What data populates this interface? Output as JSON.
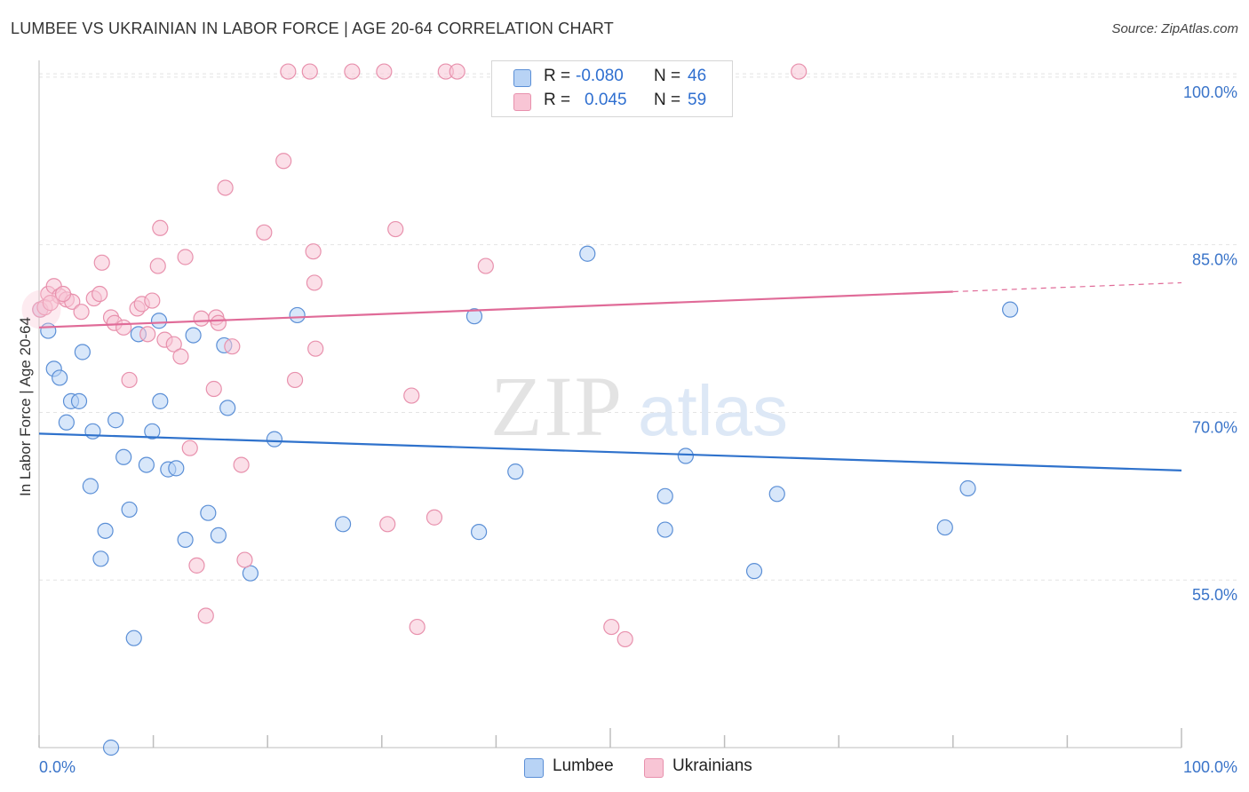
{
  "title": "LUMBEE VS UKRAINIAN IN LABOR FORCE | AGE 20-64 CORRELATION CHART",
  "source": "Source: ZipAtlas.com",
  "watermark": {
    "zip": "ZIP",
    "atlas": "atlas"
  },
  "legend": {
    "r_label": "R =",
    "n_label": "N =",
    "rows": [
      {
        "series": "Lumbee",
        "r": "-0.080",
        "n": "46"
      },
      {
        "series": "Ukrainians",
        "r": "0.045",
        "n": "59"
      }
    ]
  },
  "bottom_legend": [
    "Lumbee",
    "Ukrainians"
  ],
  "colors": {
    "lumbee_fill": "#b8d3f5",
    "lumbee_stroke": "#5b8fd6",
    "lumbee_line": "#2f72cc",
    "ukr_fill": "#f8c5d5",
    "ukr_stroke": "#e891ad",
    "ukr_line": "#e06b98",
    "value_text": "#2f6fd0",
    "grid": "#e4e4e4",
    "axis_tick_text": "#3a74c9"
  },
  "chart_data": {
    "type": "scatter",
    "title": "LUMBEE VS UKRAINIAN IN LABOR FORCE | AGE 20-64 CORRELATION CHART",
    "xlabel": "",
    "ylabel": "In Labor Force | Age 20-64",
    "xlim": [
      0,
      100
    ],
    "ylim": [
      40,
      101.5
    ],
    "x_tick_labels": [
      "0.0%",
      "100.0%"
    ],
    "y_ticks": [
      55,
      70,
      85,
      100
    ],
    "y_tick_labels": [
      "55.0%",
      "70.0%",
      "85.0%",
      "100.0%"
    ],
    "grid": true,
    "series": [
      {
        "name": "Lumbee",
        "r": -0.08,
        "n": 46,
        "trend": {
          "x": [
            0,
            100
          ],
          "y": [
            68.1,
            64.8
          ]
        },
        "points": [
          [
            0.1,
            79.2
          ],
          [
            0.8,
            77.3
          ],
          [
            1.3,
            73.9
          ],
          [
            1.8,
            73.1
          ],
          [
            2.4,
            69.1
          ],
          [
            2.8,
            71.0
          ],
          [
            3.5,
            71.0
          ],
          [
            3.8,
            75.4
          ],
          [
            4.5,
            63.4
          ],
          [
            4.7,
            68.3
          ],
          [
            5.8,
            59.4
          ],
          [
            5.4,
            56.9
          ],
          [
            6.7,
            69.3
          ],
          [
            7.4,
            66.0
          ],
          [
            7.9,
            61.3
          ],
          [
            8.3,
            49.8
          ],
          [
            8.7,
            77.0
          ],
          [
            9.4,
            65.3
          ],
          [
            9.9,
            68.3
          ],
          [
            10.6,
            71.0
          ],
          [
            10.5,
            78.2
          ],
          [
            11.3,
            64.9
          ],
          [
            12.0,
            65.0
          ],
          [
            12.8,
            58.6
          ],
          [
            13.5,
            76.9
          ],
          [
            14.8,
            61.0
          ],
          [
            15.7,
            59.0
          ],
          [
            16.2,
            76.0
          ],
          [
            16.5,
            70.4
          ],
          [
            18.5,
            55.6
          ],
          [
            20.6,
            67.6
          ],
          [
            22.6,
            78.7
          ],
          [
            26.6,
            60.0
          ],
          [
            38.1,
            78.6
          ],
          [
            38.5,
            59.3
          ],
          [
            41.7,
            64.7
          ],
          [
            48.0,
            84.2
          ],
          [
            54.8,
            62.5
          ],
          [
            54.8,
            59.5
          ],
          [
            56.6,
            66.1
          ],
          [
            62.6,
            55.8
          ],
          [
            64.6,
            62.7
          ],
          [
            79.3,
            59.7
          ],
          [
            81.3,
            63.2
          ],
          [
            85.0,
            79.2
          ],
          [
            6.3,
            40.0
          ]
        ]
      },
      {
        "name": "Ukrainians",
        "r": 0.045,
        "n": 59,
        "trend": {
          "x": [
            0,
            100
          ],
          "y": [
            77.6,
            81.6
          ]
        },
        "points": [
          [
            0.1,
            79.2
          ],
          [
            0.8,
            80.6
          ],
          [
            1.3,
            81.3
          ],
          [
            1.8,
            80.4
          ],
          [
            2.4,
            80.1
          ],
          [
            2.9,
            79.9
          ],
          [
            3.7,
            79.0
          ],
          [
            4.8,
            80.2
          ],
          [
            5.3,
            80.6
          ],
          [
            5.5,
            83.4
          ],
          [
            6.3,
            78.5
          ],
          [
            6.6,
            78.0
          ],
          [
            7.4,
            77.6
          ],
          [
            7.9,
            72.9
          ],
          [
            8.6,
            79.3
          ],
          [
            9.0,
            79.7
          ],
          [
            9.5,
            77.0
          ],
          [
            9.9,
            80.0
          ],
          [
            10.4,
            83.1
          ],
          [
            10.6,
            86.5
          ],
          [
            11.0,
            76.5
          ],
          [
            11.8,
            76.1
          ],
          [
            12.4,
            75.0
          ],
          [
            12.8,
            83.9
          ],
          [
            13.2,
            66.8
          ],
          [
            13.8,
            56.3
          ],
          [
            14.2,
            78.4
          ],
          [
            14.6,
            51.8
          ],
          [
            15.3,
            72.1
          ],
          [
            15.5,
            78.5
          ],
          [
            15.7,
            78.0
          ],
          [
            16.3,
            90.1
          ],
          [
            16.9,
            75.9
          ],
          [
            17.7,
            65.3
          ],
          [
            18.0,
            56.8
          ],
          [
            19.7,
            86.1
          ],
          [
            21.4,
            92.5
          ],
          [
            21.8,
            100.5
          ],
          [
            22.4,
            72.9
          ],
          [
            23.7,
            100.5
          ],
          [
            24.0,
            84.4
          ],
          [
            24.1,
            81.6
          ],
          [
            24.2,
            75.7
          ],
          [
            27.4,
            100.5
          ],
          [
            30.2,
            100.5
          ],
          [
            30.5,
            60.0
          ],
          [
            31.2,
            86.4
          ],
          [
            32.6,
            71.5
          ],
          [
            33.1,
            50.8
          ],
          [
            34.6,
            60.6
          ],
          [
            35.6,
            100.5
          ],
          [
            36.6,
            100.5
          ],
          [
            39.1,
            83.1
          ],
          [
            50.1,
            50.8
          ],
          [
            51.3,
            49.7
          ],
          [
            66.5,
            100.5
          ],
          [
            0.5,
            79.4
          ],
          [
            2.1,
            80.6
          ],
          [
            1.0,
            79.8
          ]
        ]
      }
    ]
  }
}
